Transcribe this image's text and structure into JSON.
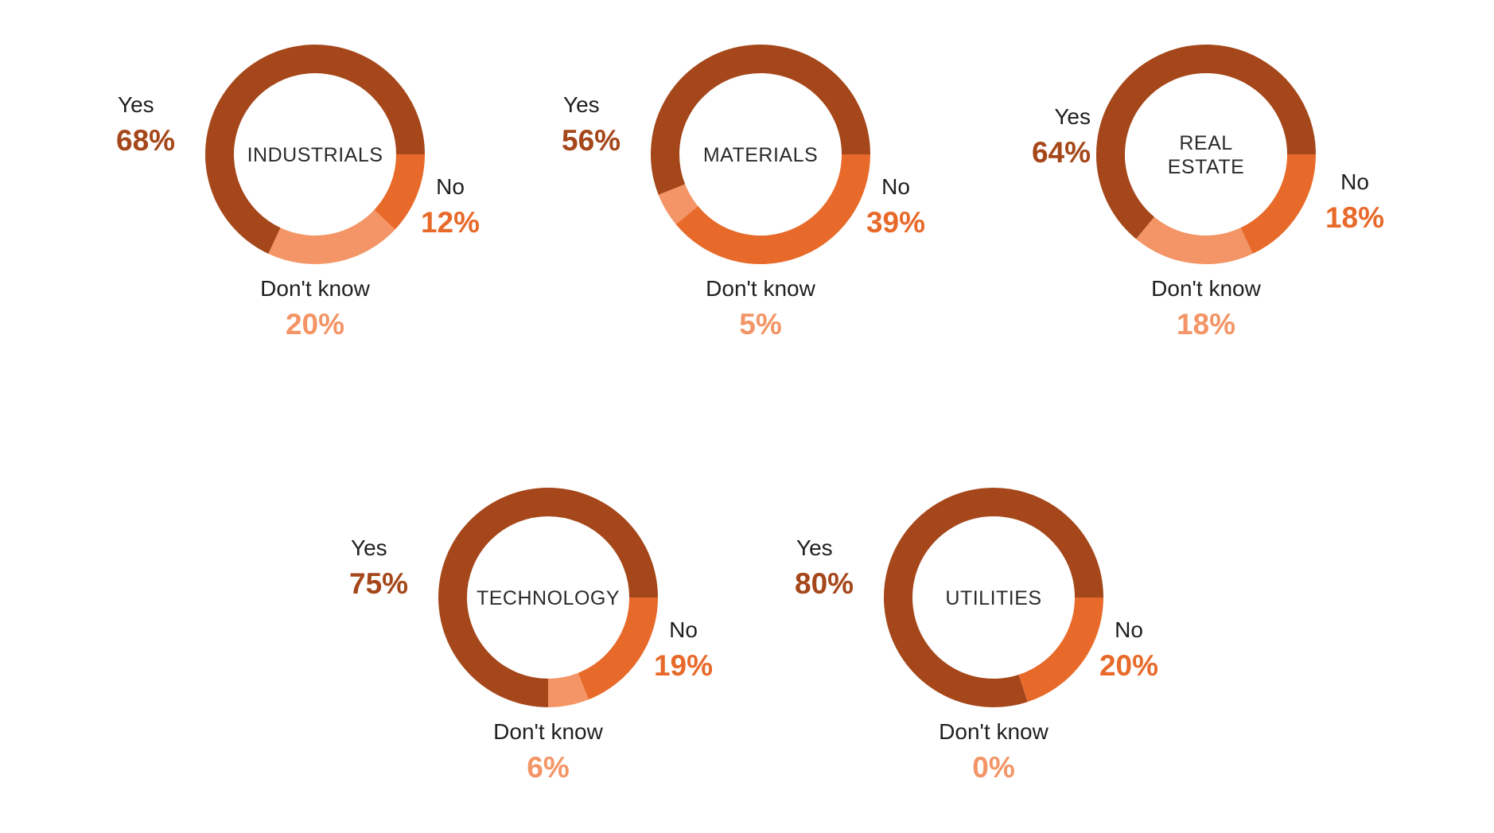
{
  "colors": {
    "yes": "#A5471A",
    "no": "#E86A2A",
    "dont_know": "#F39566",
    "text": "#1f1f1f"
  },
  "chart_data": [
    {
      "type": "pie",
      "center_label": "INDUSTRIALS",
      "slices": [
        {
          "label": "Yes",
          "value": 68,
          "display": "68%"
        },
        {
          "label": "No",
          "value": 12,
          "display": "12%"
        },
        {
          "label": "Don't know",
          "value": 20,
          "display": "20%"
        }
      ]
    },
    {
      "type": "pie",
      "center_label": "MATERIALS",
      "slices": [
        {
          "label": "Yes",
          "value": 56,
          "display": "56%"
        },
        {
          "label": "No",
          "value": 39,
          "display": "39%"
        },
        {
          "label": "Don't know",
          "value": 5,
          "display": "5%"
        }
      ]
    },
    {
      "type": "pie",
      "center_label": "REAL ESTATE",
      "slices": [
        {
          "label": "Yes",
          "value": 64,
          "display": "64%"
        },
        {
          "label": "No",
          "value": 18,
          "display": "18%"
        },
        {
          "label": "Don't know",
          "value": 18,
          "display": "18%"
        }
      ]
    },
    {
      "type": "pie",
      "center_label": "TECHNOLOGY",
      "slices": [
        {
          "label": "Yes",
          "value": 75,
          "display": "75%"
        },
        {
          "label": "No",
          "value": 19,
          "display": "19%"
        },
        {
          "label": "Don't know",
          "value": 6,
          "display": "6%"
        }
      ]
    },
    {
      "type": "pie",
      "center_label": "UTILITIES",
      "slices": [
        {
          "label": "Yes",
          "value": 80,
          "display": "80%"
        },
        {
          "label": "No",
          "value": 20,
          "display": "20%"
        },
        {
          "label": "Don't know",
          "value": 0,
          "display": "0%"
        }
      ]
    }
  ]
}
